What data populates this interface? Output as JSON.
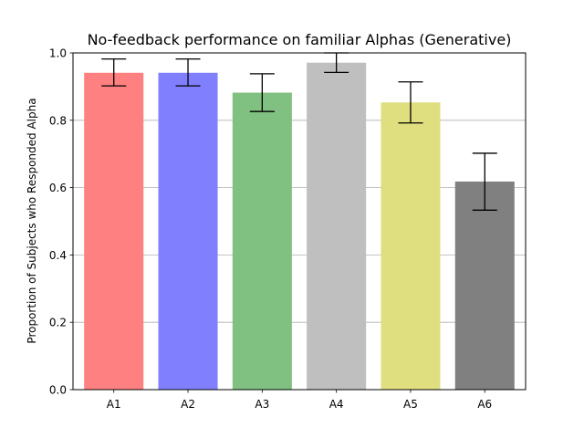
{
  "chart_data": {
    "type": "bar",
    "title": "No-feedback performance on familiar Alphas (Generative)",
    "xlabel": "",
    "ylabel": "Proportion of Subjects who Responded Alpha",
    "categories": [
      "A1",
      "A2",
      "A3",
      "A4",
      "A5",
      "A6"
    ],
    "values": [
      0.941,
      0.941,
      0.882,
      0.971,
      0.853,
      0.618
    ],
    "error_lower": [
      0.902,
      0.902,
      0.826,
      0.942,
      0.792,
      0.533
    ],
    "error_upper": [
      0.982,
      0.982,
      0.938,
      1.0,
      0.914,
      0.702
    ],
    "colors": [
      "#ff8080",
      "#8080ff",
      "#80c080",
      "#bfbfbf",
      "#dfdf80",
      "#808080"
    ],
    "ylim": [
      0,
      1.0
    ],
    "yticks": [
      "0.0",
      "0.2",
      "0.4",
      "0.6",
      "0.8",
      "1.0"
    ],
    "grid": "y"
  }
}
